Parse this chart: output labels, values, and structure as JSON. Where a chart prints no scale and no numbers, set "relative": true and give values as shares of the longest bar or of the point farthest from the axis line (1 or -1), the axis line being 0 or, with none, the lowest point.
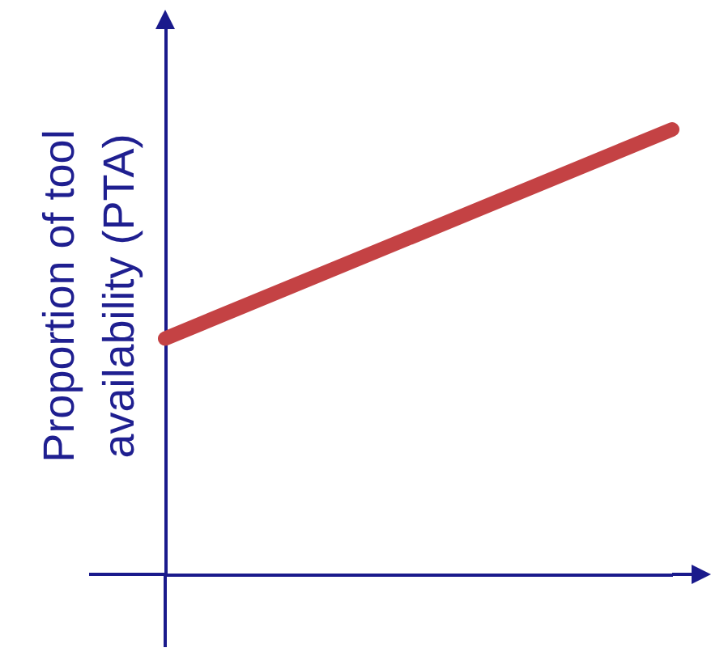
{
  "chart_data": {
    "type": "line",
    "relative": true,
    "ylabel": "Proportion of tool availability (PTA)",
    "categories": [
      null,
      null
    ],
    "series": [
      {
        "color": "#c44244",
        "values": [
          0.53,
          1
        ]
      }
    ],
    "line_style": "solid"
  }
}
